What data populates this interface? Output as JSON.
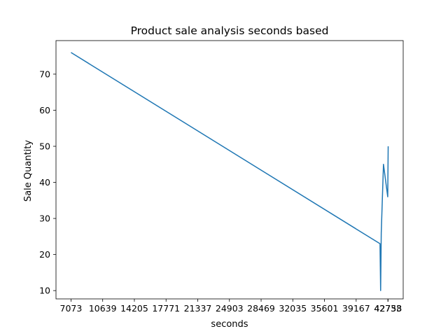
{
  "chart_data": {
    "type": "line",
    "title": "Product sale analysis seconds based",
    "xlabel": "seconds",
    "ylabel": "Sale Quantity",
    "xlim": [
      5384,
      44460
    ],
    "ylim": [
      7.7,
      79.3
    ],
    "x_ticks": [
      7073,
      10639,
      14205,
      17771,
      21337,
      24903,
      28469,
      32035,
      35601,
      39167,
      42733,
      42758
    ],
    "x_tick_labels": [
      "7073",
      "10639",
      "14205",
      "17771",
      "21337",
      "24903",
      "28469",
      "32035",
      "35601",
      "39167",
      "42733",
      "42758"
    ],
    "y_ticks": [
      10,
      20,
      30,
      40,
      50,
      60,
      70
    ],
    "y_tick_labels": [
      "10",
      "20",
      "30",
      "40",
      "50",
      "60",
      "70"
    ],
    "grid": false,
    "color": "#1f77b4",
    "series": [
      {
        "name": "",
        "x": [
          7073,
          41850,
          41920,
          41990,
          42240,
          42720,
          42770
        ],
        "y": [
          76,
          23,
          10,
          26,
          45,
          36,
          50
        ]
      }
    ]
  }
}
